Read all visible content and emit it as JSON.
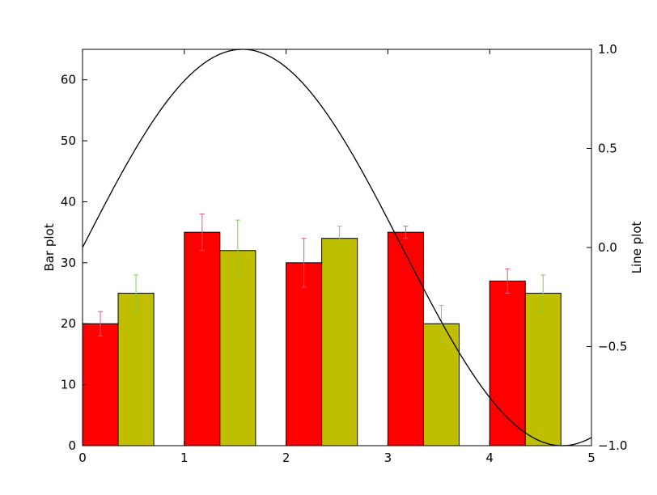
{
  "chart_data": {
    "type": "bar",
    "title": "",
    "xlabel": "",
    "xlim": [
      0,
      5
    ],
    "x_ticks": [
      0,
      1,
      2,
      3,
      4,
      5
    ],
    "left_axis": {
      "label": "Bar plot",
      "ylim": [
        0,
        65
      ],
      "ticks": [
        0,
        10,
        20,
        30,
        40,
        50,
        60
      ]
    },
    "right_axis": {
      "label": "Line plot",
      "ylim": [
        -1,
        1
      ],
      "ticks": [
        -1.0,
        -0.5,
        0.0,
        0.5,
        1.0
      ],
      "tick_labels": [
        "−1.0",
        "−0.5",
        "0.0",
        "0.5",
        "1.0"
      ]
    },
    "bar_width": 0.35,
    "bar_x": [
      0,
      1,
      2,
      3,
      4
    ],
    "series": [
      {
        "kind": "bar",
        "axis": "left",
        "color": "#ff0000",
        "error_color": "#e05a7a",
        "values": [
          20,
          35,
          30,
          35,
          27
        ],
        "errors": [
          2,
          3,
          4,
          1,
          2
        ]
      },
      {
        "kind": "bar",
        "axis": "left",
        "color": "#bfbf00",
        "error_color": "#7fd04f",
        "values": [
          25,
          32,
          34,
          20,
          25
        ],
        "errors": [
          3,
          5,
          2,
          3,
          3
        ]
      },
      {
        "kind": "line",
        "axis": "right",
        "color": "#000000",
        "function": "sin(x)",
        "x_range": [
          0,
          5
        ]
      }
    ],
    "grid": false,
    "legend": "none"
  }
}
